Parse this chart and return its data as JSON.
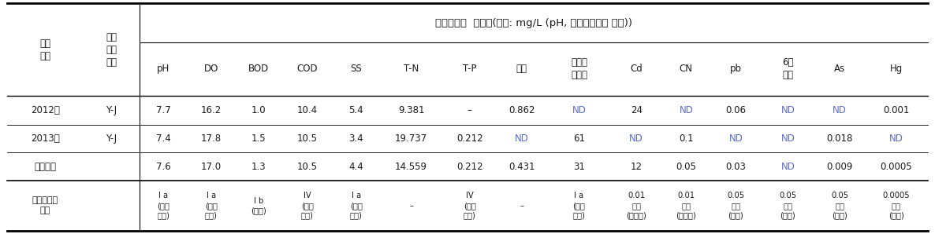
{
  "title": "조사항목별  오염도(단위: mg/L (pH, 총대장균군수 제외))",
  "rows": [
    [
      "2012년",
      "Y-J",
      "7.7",
      "16.2",
      "1.0",
      "10.4",
      "5.4",
      "9.381",
      "–",
      "0.862",
      "ND",
      "24",
      "ND",
      "0.06",
      "ND",
      "ND",
      "0.001"
    ],
    [
      "2013년",
      "Y-J",
      "7.4",
      "17.8",
      "1.5",
      "10.5",
      "3.4",
      "19.737",
      "0.212",
      "ND",
      "61",
      "ND",
      "0.1",
      "ND",
      "ND",
      "0.018",
      "ND"
    ],
    [
      "전체평균",
      "",
      "7.6",
      "17.0",
      "1.3",
      "10.5",
      "4.4",
      "14.559",
      "0.212",
      "0.431",
      "31",
      "12",
      "0.05",
      "0.03",
      "ND",
      "0.009",
      "0.0005"
    ]
  ],
  "env_row": [
    "I a\n(매우\n좋음)",
    "I a\n(매우\n좋음)",
    "I b\n(좋음)",
    "IV\n(약간\n나쁨)",
    "I a\n(매우\n좋음)",
    "–",
    "IV\n(약간\n나쁨)",
    "–",
    "I a\n(매우\n좋음)",
    "0.01\n이하\n(불만족)",
    "0.01\n이하\n(불만족)",
    "0.05\n이하\n(만족)",
    "0.05\n이하\n(만족)",
    "0.05\n이하\n(만족)",
    "0.0005\n이하\n(만족)"
  ],
  "col_headers": [
    "pH",
    "DO",
    "BOD",
    "COD",
    "SS",
    "T-N",
    "T-P",
    "페놀",
    "총대장\n균군수",
    "Cd",
    "CN",
    "pb",
    "6가\n크롬",
    "As",
    "Hg"
  ],
  "nd_color": "#5b6dc8",
  "data_color": "#5b6dc8",
  "black": "#1a1a1a",
  "background": "#ffffff"
}
